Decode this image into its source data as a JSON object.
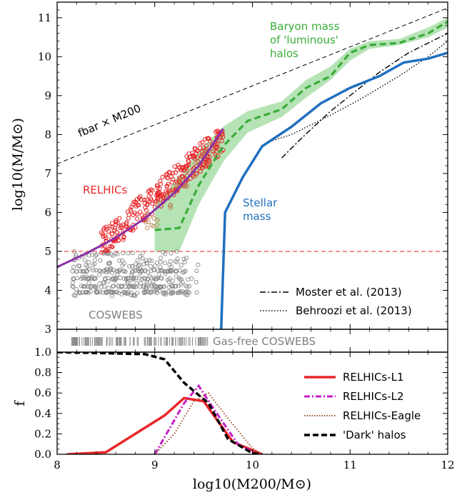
{
  "chart_data": [
    {
      "type": "line",
      "panel": "top",
      "ylabel": "log10(M/M⊙)",
      "xlim": [
        8,
        12
      ],
      "ylim": [
        3,
        11.4
      ],
      "yticks": [
        3,
        4,
        5,
        6,
        7,
        8,
        9,
        10,
        11
      ],
      "annotations": {
        "fbar": "fbar × M200",
        "relhics": "RELHICs",
        "coswebs": "COSWEBS",
        "stellar": [
          "Stellar",
          "mass"
        ],
        "baryon": [
          "Baryon mass",
          "of 'luminous'",
          "halos"
        ]
      },
      "colors": {
        "relhic": "#e8262a",
        "coswebs": "#7f7f7f",
        "purple": "#8b2fa8",
        "green": "#3aad3a",
        "green_fill": "#b5e3b5",
        "blue": "#1f6fbf",
        "red_dash": "#e8262a"
      },
      "series": [
        {
          "name": "Moster et al. (2013)",
          "style": "dashdot",
          "x": [
            10.3,
            10.5,
            10.8,
            11.0,
            11.3,
            11.6,
            12.0
          ],
          "y": [
            7.4,
            7.9,
            8.6,
            9.0,
            9.6,
            10.1,
            10.6
          ]
        },
        {
          "name": "Behroozi et al. (2013)",
          "style": "dotted",
          "x": [
            10.15,
            10.4,
            10.8,
            11.1,
            11.5,
            11.8,
            12.0
          ],
          "y": [
            7.8,
            8.0,
            8.5,
            8.9,
            9.5,
            10.0,
            10.4
          ]
        },
        {
          "style": "dashed",
          "color": "#000000",
          "x": [
            8.0,
            12.0
          ],
          "y": [
            7.25,
            11.25
          ]
        },
        {
          "style": "dashed",
          "color": "#e8262a",
          "x": [
            8.0,
            12.0
          ],
          "y": [
            5.0,
            5.0
          ]
        },
        {
          "style": "solid",
          "color": "#1f6fbf",
          "x": [
            9.68,
            9.72,
            9.9,
            10.1,
            10.4,
            10.7,
            11.0,
            11.3,
            11.55,
            11.8,
            12.0
          ],
          "y": [
            3.0,
            6.0,
            6.9,
            7.7,
            8.2,
            8.8,
            9.2,
            9.5,
            9.85,
            9.95,
            10.1
          ]
        },
        {
          "style": "dashed",
          "color": "#3aad3a",
          "x": [
            9.0,
            9.25,
            9.45,
            9.7,
            9.95,
            10.3,
            10.55,
            10.8,
            11.0,
            11.2,
            11.5,
            11.8,
            12.0
          ],
          "y": [
            5.55,
            5.6,
            6.7,
            7.7,
            8.35,
            8.65,
            9.2,
            9.5,
            10.1,
            10.3,
            10.35,
            10.6,
            10.9
          ]
        },
        {
          "style": "solid",
          "color": "#8b2fa8",
          "x": [
            8.0,
            8.3,
            8.6,
            8.9,
            9.2,
            9.45,
            9.7
          ],
          "y": [
            4.6,
            4.95,
            5.35,
            5.85,
            6.5,
            7.2,
            8.15
          ]
        }
      ],
      "band": {
        "color": "#b5e3b5",
        "x": [
          9.0,
          9.25,
          9.45,
          9.7,
          9.95,
          10.3,
          10.55,
          10.8,
          11.0,
          11.2,
          11.5,
          11.8,
          12.0
        ],
        "lower": [
          5.0,
          5.0,
          6.2,
          7.3,
          8.05,
          8.45,
          8.95,
          9.4,
          9.9,
          10.2,
          10.3,
          10.5,
          10.75
        ],
        "upper": [
          6.15,
          6.9,
          7.6,
          8.2,
          8.6,
          8.85,
          9.4,
          9.75,
          10.2,
          10.4,
          10.45,
          10.75,
          11.0
        ]
      },
      "legend": [
        "Moster et al. (2013)",
        "Behroozi et al. (2013)"
      ],
      "legend_position": "lower-right"
    },
    {
      "type": "scatter",
      "panel": "strip",
      "label": "Gas-free COSWEBS",
      "x_range": [
        8.15,
        9.55
      ]
    },
    {
      "type": "line",
      "panel": "bottom",
      "xlabel": "log10(M200/M⊙)",
      "ylabel": "f",
      "xlim": [
        8,
        12
      ],
      "ylim": [
        0,
        1.0
      ],
      "xticks": [
        8,
        9,
        10,
        11,
        12
      ],
      "yticks": [
        0.0,
        0.2,
        0.4,
        0.6,
        0.8,
        1.0
      ],
      "ytick_labels": [
        "0.0",
        "0.2",
        "0.4",
        "0.6",
        "0.8",
        "1.0"
      ],
      "legend_position": "right",
      "series": [
        {
          "name": "RELHICs-L1",
          "style": "solid",
          "color": "#e8262a",
          "x": [
            8.1,
            8.5,
            8.8,
            9.1,
            9.3,
            9.5,
            9.8,
            10.1
          ],
          "y": [
            0.0,
            0.02,
            0.2,
            0.38,
            0.55,
            0.52,
            0.12,
            0.0
          ]
        },
        {
          "name": "RELHICs-L2",
          "style": "dashdot",
          "color": "#c81ec8",
          "x": [
            9.0,
            9.15,
            9.3,
            9.45,
            9.6,
            9.85,
            10.05
          ],
          "y": [
            0.0,
            0.25,
            0.5,
            0.67,
            0.45,
            0.1,
            0.0
          ]
        },
        {
          "name": "RELHICs-Eagle",
          "style": "dotted",
          "color": "#a0522d",
          "x": [
            9.0,
            9.2,
            9.4,
            9.55,
            9.75,
            10.0,
            10.1
          ],
          "y": [
            0.0,
            0.2,
            0.52,
            0.6,
            0.35,
            0.06,
            0.0
          ]
        },
        {
          "name": "'Dark' halos",
          "style": "dashed",
          "color": "#000000",
          "x": [
            8.0,
            8.5,
            8.9,
            9.1,
            9.3,
            9.55,
            9.75,
            10.0,
            10.1
          ],
          "y": [
            1.0,
            0.99,
            0.98,
            0.93,
            0.7,
            0.5,
            0.15,
            0.01,
            0.0
          ]
        }
      ]
    }
  ]
}
